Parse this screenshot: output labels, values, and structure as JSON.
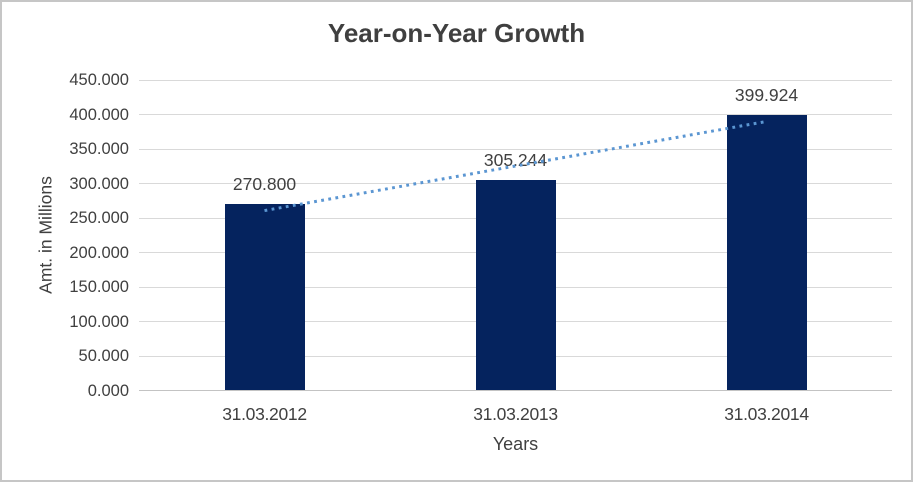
{
  "chart_data": {
    "type": "bar",
    "title": "Year-on-Year Growth",
    "xlabel": "Years",
    "ylabel": "Amt. in Millions",
    "categories": [
      "31.03.2012",
      "31.03.2013",
      "31.03.2014"
    ],
    "values": [
      270.8,
      305.244,
      399.924
    ],
    "data_labels": [
      "270.800",
      "305.244",
      "399.924"
    ],
    "y_ticks": [
      "0.000",
      "50.000",
      "100.000",
      "150.000",
      "200.000",
      "250.000",
      "300.000",
      "350.000",
      "400.000",
      "450.000"
    ],
    "ylim": [
      0,
      450
    ],
    "y_step": 50,
    "grid": true,
    "legend": false,
    "trendline": {
      "type": "linear",
      "style": "dotted"
    },
    "colors": {
      "bar": "#05235e",
      "trendline": "#5b96d2",
      "gridline": "#d9d9d9",
      "axis_line": "#c3c3c3",
      "text": "#404040",
      "title": "#3f3f3f",
      "frame_border": "#c6c6c6"
    }
  }
}
